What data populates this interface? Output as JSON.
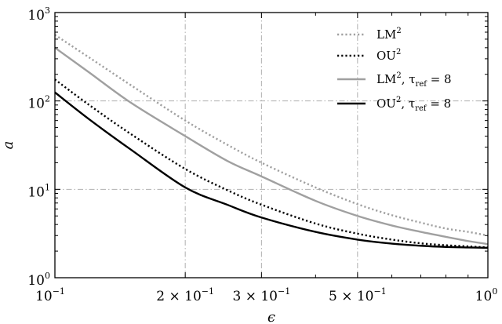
{
  "chart_data": {
    "type": "line",
    "xscale": "log",
    "yscale": "log",
    "xlim": [
      0.1,
      1
    ],
    "ylim": [
      1,
      1000
    ],
    "xlabel": "ϵ",
    "ylabel": "a",
    "grid": true,
    "legend_position": "top-right",
    "x_ticks": [
      {
        "value": 0.1,
        "base": "10",
        "exp": "−1"
      },
      {
        "value": 0.2,
        "base": "2 × 10",
        "exp": "−1"
      },
      {
        "value": 0.3,
        "base": "3 × 10",
        "exp": "−1"
      },
      {
        "value": 0.5,
        "base": "5 × 10",
        "exp": "−1"
      },
      {
        "value": 1,
        "base": "10",
        "exp": "0"
      }
    ],
    "y_ticks": [
      {
        "value": 1,
        "base": "10",
        "exp": "0"
      },
      {
        "value": 10,
        "base": "10",
        "exp": "1"
      },
      {
        "value": 100,
        "base": "10",
        "exp": "2"
      },
      {
        "value": 1000,
        "base": "10",
        "exp": "3"
      }
    ],
    "series": [
      {
        "name": "LM",
        "name_sup": "2",
        "name_rest": "",
        "color": "#a0a0a0",
        "dash": "dotted",
        "x": [
          0.1,
          0.12,
          0.15,
          0.2,
          0.25,
          0.3,
          0.4,
          0.5,
          0.6,
          0.7,
          0.8,
          0.9,
          1.0
        ],
        "y": [
          560,
          310,
          150,
          60,
          32,
          20,
          10.5,
          6.8,
          5.1,
          4.2,
          3.6,
          3.3,
          3.0
        ]
      },
      {
        "name": "OU",
        "name_sup": "2",
        "name_rest": "",
        "color": "#000000",
        "dash": "dotted",
        "x": [
          0.1,
          0.12,
          0.15,
          0.2,
          0.25,
          0.3,
          0.4,
          0.5,
          0.6,
          0.7,
          0.8,
          0.9,
          1.0
        ],
        "y": [
          175,
          90,
          42,
          17,
          9.8,
          6.7,
          4.1,
          3.15,
          2.7,
          2.45,
          2.33,
          2.26,
          2.2
        ]
      },
      {
        "name": "LM",
        "name_sup": "2",
        "name_rest": ", τ",
        "name_sub": "ref",
        "name_tail": " = 8",
        "color": "#a0a0a0",
        "dash": "solid",
        "x": [
          0.1,
          0.12,
          0.15,
          0.2,
          0.25,
          0.3,
          0.4,
          0.5,
          0.6,
          0.7,
          0.8,
          0.9,
          1.0
        ],
        "y": [
          400,
          210,
          95,
          40,
          21,
          14,
          7.4,
          5.0,
          3.9,
          3.3,
          2.9,
          2.6,
          2.4
        ]
      },
      {
        "name": "OU",
        "name_sup": "2",
        "name_rest": ", τ",
        "name_sub": "ref",
        "name_tail": " = 8",
        "color": "#000000",
        "dash": "solid",
        "x": [
          0.1,
          0.12,
          0.15,
          0.2,
          0.25,
          0.3,
          0.4,
          0.5,
          0.6,
          0.7,
          0.8,
          0.9,
          1.0
        ],
        "y": [
          125,
          62,
          28,
          10.5,
          6.7,
          4.8,
          3.3,
          2.7,
          2.43,
          2.3,
          2.23,
          2.2,
          2.18
        ]
      }
    ]
  }
}
